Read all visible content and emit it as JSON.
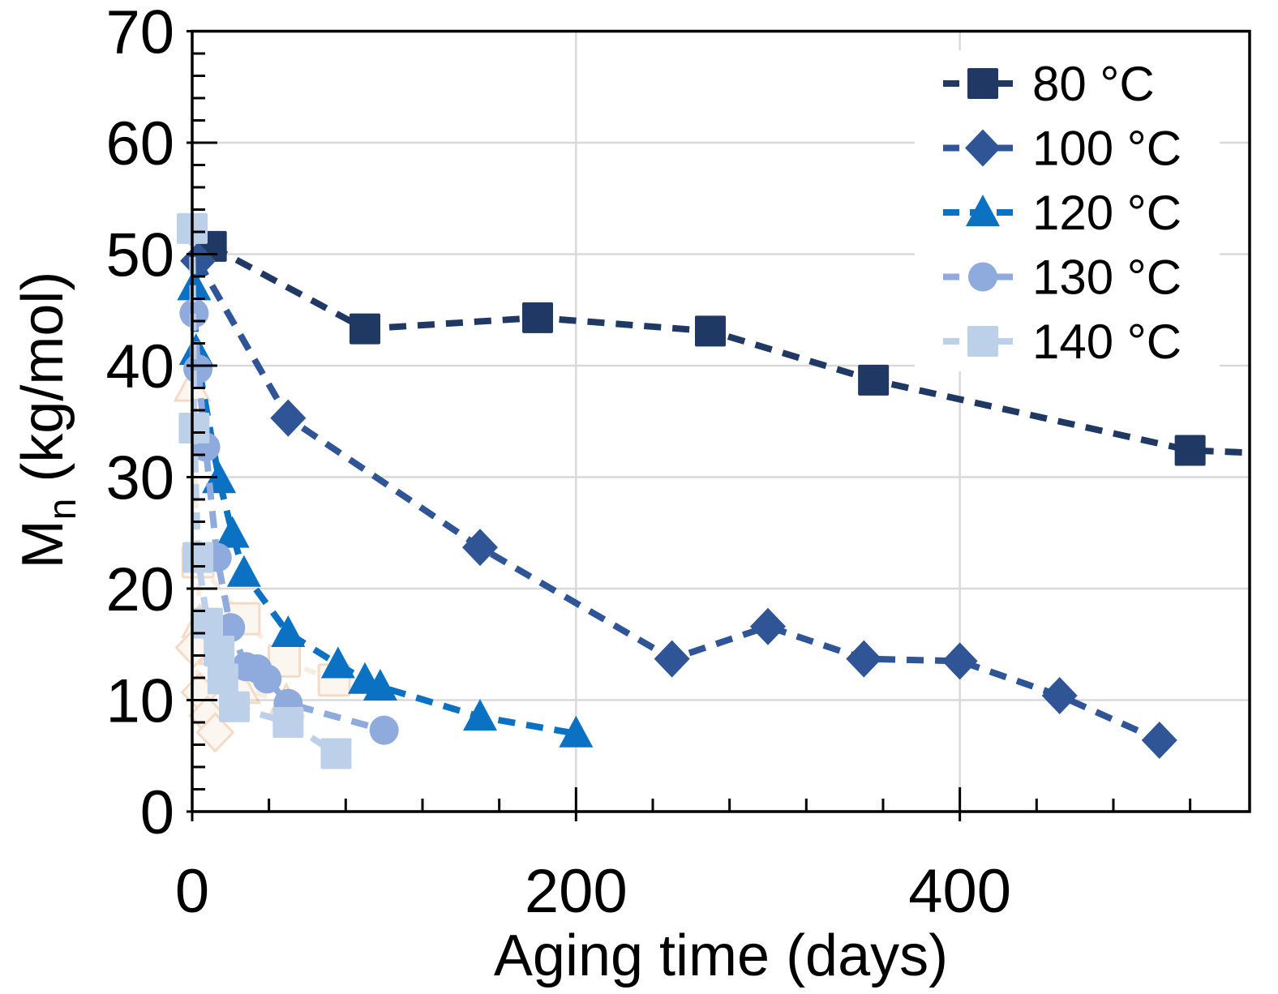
{
  "figure": {
    "background": "#ffffff",
    "axis_color": "#000000",
    "grid_color": "#d9d9d9",
    "text_color": "#000000"
  },
  "chart_data": {
    "type": "scatter",
    "title": "",
    "xlabel": "Aging time (days)",
    "ylabel": {
      "main": "M",
      "sub": "n",
      "rest": " (kg/mol)"
    },
    "xlim": [
      0,
      551
    ],
    "ylim": [
      0,
      70
    ],
    "x_major_ticks": [
      0,
      200,
      400
    ],
    "x_minor_step": 40,
    "y_major_step": 10,
    "y_minor_step": 2,
    "grid": {
      "h_lines": [
        10,
        20,
        30,
        40,
        50,
        60
      ],
      "v_lines": [
        200,
        400
      ]
    },
    "legend_position": "top-right",
    "series": [
      {
        "name": "80 °C",
        "marker": "square",
        "color": "#1f3864",
        "extend_to": [
          551,
          32.2
        ],
        "points": [
          [
            10,
            50.7
          ],
          [
            90,
            43.3
          ],
          [
            180,
            44.3
          ],
          [
            270,
            43.1
          ],
          [
            355,
            38.7
          ],
          [
            520,
            32.4
          ]
        ]
      },
      {
        "name": "100 °C",
        "marker": "diamond",
        "color": "#2f5597",
        "points": [
          [
            3,
            49.4
          ],
          [
            50,
            35.3
          ],
          [
            150,
            23.7
          ],
          [
            250,
            13.7
          ],
          [
            300,
            16.6
          ],
          [
            350,
            13.7
          ],
          [
            400,
            13.5
          ],
          [
            452,
            10.4
          ],
          [
            504,
            6.4
          ]
        ]
      },
      {
        "name": "120 °C",
        "marker": "triangle",
        "color": "#0b72c3",
        "points": [
          [
            1,
            47.1
          ],
          [
            2,
            41.3
          ],
          [
            14,
            29.8
          ],
          [
            21,
            24.9
          ],
          [
            27,
            21.4
          ],
          [
            50,
            16.0
          ],
          [
            76,
            13.2
          ],
          [
            90,
            11.8
          ],
          [
            98,
            11.2
          ],
          [
            150,
            8.5
          ],
          [
            200,
            7.0
          ]
        ]
      },
      {
        "name": "130 °C",
        "marker": "circle",
        "color": "#8faadc",
        "points": [
          [
            1,
            44.7
          ],
          [
            3,
            39.7
          ],
          [
            7,
            32.7
          ],
          [
            13,
            22.8
          ],
          [
            20,
            16.5
          ],
          [
            28,
            13.0
          ],
          [
            34,
            12.8
          ],
          [
            39,
            11.9
          ],
          [
            50,
            9.7
          ],
          [
            100,
            7.3
          ]
        ]
      },
      {
        "name": "140 °C",
        "marker": "square",
        "color": "#bdd0ea",
        "points": [
          [
            0,
            52.3
          ],
          [
            1,
            34.4
          ],
          [
            3,
            22.8
          ],
          [
            8,
            16.9
          ],
          [
            14,
            14.4
          ],
          [
            16,
            11.9
          ],
          [
            22,
            9.4
          ],
          [
            50,
            8.0
          ],
          [
            75,
            5.2
          ]
        ]
      }
    ],
    "ghost_series": [
      {
        "marker": "triangle",
        "points": [
          [
            0,
            38.1
          ],
          [
            4,
            16.9
          ],
          [
            13,
            14.5
          ],
          [
            26,
            11.0
          ],
          [
            49,
            9.8
          ]
        ]
      },
      {
        "marker": "square",
        "points": [
          [
            3,
            22.4
          ],
          [
            27,
            17.3
          ],
          [
            48,
            13.5
          ],
          [
            74,
            11.8
          ]
        ]
      },
      {
        "marker": "diamond",
        "points": [
          [
            1,
            14.7
          ],
          [
            4,
            10.7
          ],
          [
            8,
            8.6
          ],
          [
            12,
            7.1
          ]
        ]
      }
    ],
    "ghost_style": {
      "stroke": "#d98c4a",
      "fill": "#f7e3d2",
      "line": "#eec49a",
      "opacity": 0.3
    }
  }
}
